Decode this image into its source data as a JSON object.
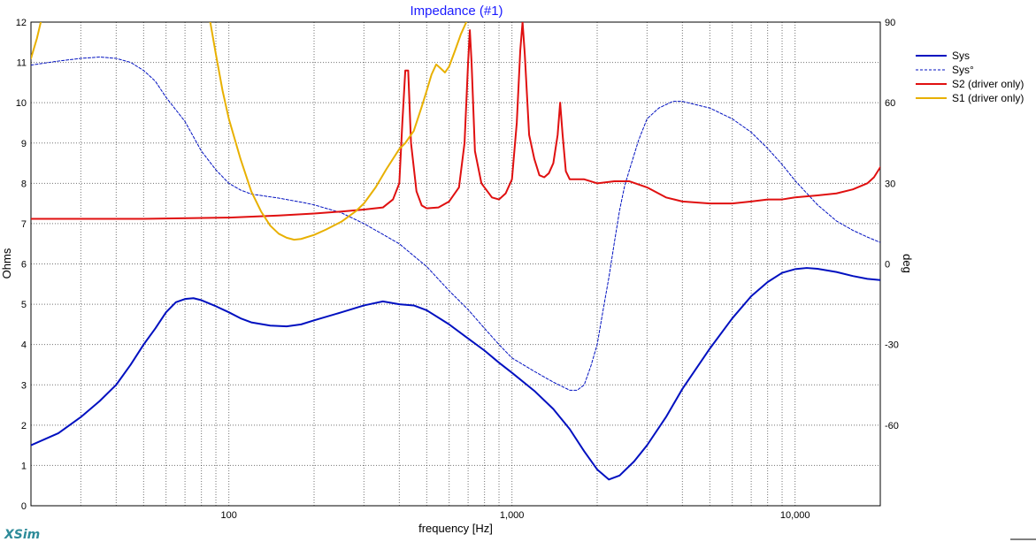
{
  "app": {
    "brand": "XSim",
    "brand_color": "#2e8b99"
  },
  "chart_data": {
    "type": "line",
    "title": "Impedance (#1)",
    "title_color": "#1a1aff",
    "xlabel": "frequency [Hz]",
    "ylabel_left": "Ohms",
    "ylabel_right": "deg",
    "x_scale": "log",
    "xlim": [
      20,
      20000
    ],
    "ylim_left": [
      0,
      12
    ],
    "ylim_right": [
      -90,
      90
    ],
    "grid": true,
    "legend_position": "right",
    "x_tick_labels": [
      {
        "value": 100,
        "label": "100"
      },
      {
        "value": 1000,
        "label": "1,000"
      },
      {
        "value": 10000,
        "label": "10,000"
      }
    ],
    "y_left_ticks": [
      0,
      1,
      2,
      3,
      4,
      5,
      6,
      7,
      8,
      9,
      10,
      11,
      12
    ],
    "y_right_ticks": [
      -60,
      -30,
      0,
      30,
      60,
      90
    ],
    "series": [
      {
        "name": "Sys",
        "axis": "left",
        "color": "#0010c0",
        "style": "solid",
        "width": 2,
        "points": [
          [
            20,
            1.5
          ],
          [
            25,
            1.8
          ],
          [
            30,
            2.2
          ],
          [
            35,
            2.6
          ],
          [
            40,
            3.0
          ],
          [
            45,
            3.5
          ],
          [
            50,
            4.0
          ],
          [
            55,
            4.4
          ],
          [
            60,
            4.8
          ],
          [
            65,
            5.05
          ],
          [
            70,
            5.13
          ],
          [
            75,
            5.15
          ],
          [
            80,
            5.1
          ],
          [
            90,
            4.95
          ],
          [
            100,
            4.8
          ],
          [
            110,
            4.65
          ],
          [
            120,
            4.55
          ],
          [
            140,
            4.47
          ],
          [
            160,
            4.45
          ],
          [
            180,
            4.5
          ],
          [
            200,
            4.6
          ],
          [
            250,
            4.8
          ],
          [
            300,
            4.97
          ],
          [
            350,
            5.07
          ],
          [
            400,
            5.0
          ],
          [
            450,
            4.97
          ],
          [
            500,
            4.85
          ],
          [
            600,
            4.5
          ],
          [
            700,
            4.15
          ],
          [
            800,
            3.85
          ],
          [
            900,
            3.55
          ],
          [
            1000,
            3.3
          ],
          [
            1200,
            2.85
          ],
          [
            1400,
            2.4
          ],
          [
            1600,
            1.9
          ],
          [
            1800,
            1.35
          ],
          [
            2000,
            0.9
          ],
          [
            2200,
            0.65
          ],
          [
            2400,
            0.75
          ],
          [
            2700,
            1.1
          ],
          [
            3000,
            1.5
          ],
          [
            3500,
            2.2
          ],
          [
            4000,
            2.9
          ],
          [
            5000,
            3.9
          ],
          [
            6000,
            4.65
          ],
          [
            7000,
            5.2
          ],
          [
            8000,
            5.55
          ],
          [
            9000,
            5.78
          ],
          [
            10000,
            5.87
          ],
          [
            11000,
            5.9
          ],
          [
            12000,
            5.88
          ],
          [
            14000,
            5.8
          ],
          [
            16000,
            5.7
          ],
          [
            18000,
            5.63
          ],
          [
            20000,
            5.6
          ]
        ]
      },
      {
        "name": "Sys°",
        "axis": "right",
        "color": "#0010c0",
        "style": "dashed",
        "width": 1,
        "points": [
          [
            20,
            74
          ],
          [
            25,
            75.5
          ],
          [
            30,
            76.5
          ],
          [
            35,
            77
          ],
          [
            40,
            76.5
          ],
          [
            45,
            75
          ],
          [
            50,
            72
          ],
          [
            55,
            68
          ],
          [
            60,
            62
          ],
          [
            70,
            53
          ],
          [
            80,
            42
          ],
          [
            90,
            35
          ],
          [
            100,
            30
          ],
          [
            110,
            27.5
          ],
          [
            120,
            26
          ],
          [
            150,
            24.5
          ],
          [
            180,
            23
          ],
          [
            200,
            22
          ],
          [
            250,
            19
          ],
          [
            300,
            15
          ],
          [
            350,
            11
          ],
          [
            400,
            7.5
          ],
          [
            450,
            3
          ],
          [
            500,
            -1
          ],
          [
            600,
            -10
          ],
          [
            700,
            -17
          ],
          [
            800,
            -24
          ],
          [
            900,
            -30
          ],
          [
            1000,
            -35
          ],
          [
            1200,
            -40
          ],
          [
            1400,
            -44
          ],
          [
            1600,
            -47
          ],
          [
            1700,
            -47
          ],
          [
            1800,
            -45
          ],
          [
            1900,
            -38
          ],
          [
            2000,
            -30
          ],
          [
            2100,
            -17
          ],
          [
            2200,
            -5
          ],
          [
            2300,
            8
          ],
          [
            2400,
            20
          ],
          [
            2500,
            29
          ],
          [
            2600,
            35
          ],
          [
            2800,
            46
          ],
          [
            3000,
            54
          ],
          [
            3300,
            58
          ],
          [
            3700,
            60.5
          ],
          [
            4000,
            60.5
          ],
          [
            5000,
            58
          ],
          [
            6000,
            54
          ],
          [
            7000,
            49
          ],
          [
            8000,
            43
          ],
          [
            9000,
            37
          ],
          [
            10000,
            31
          ],
          [
            12000,
            22
          ],
          [
            14000,
            16
          ],
          [
            16000,
            12.5
          ],
          [
            18000,
            10
          ],
          [
            20000,
            8
          ]
        ]
      },
      {
        "name": "S2 (driver only)",
        "axis": "left",
        "color": "#e01010",
        "style": "solid",
        "width": 2,
        "points": [
          [
            20,
            7.12
          ],
          [
            50,
            7.12
          ],
          [
            100,
            7.15
          ],
          [
            150,
            7.2
          ],
          [
            200,
            7.25
          ],
          [
            250,
            7.3
          ],
          [
            300,
            7.35
          ],
          [
            350,
            7.4
          ],
          [
            380,
            7.6
          ],
          [
            400,
            8.0
          ],
          [
            410,
            9.5
          ],
          [
            420,
            10.8
          ],
          [
            430,
            10.8
          ],
          [
            440,
            9.0
          ],
          [
            460,
            7.8
          ],
          [
            480,
            7.45
          ],
          [
            500,
            7.38
          ],
          [
            550,
            7.4
          ],
          [
            600,
            7.55
          ],
          [
            650,
            7.9
          ],
          [
            680,
            9.0
          ],
          [
            700,
            11.0
          ],
          [
            710,
            11.8
          ],
          [
            720,
            11.0
          ],
          [
            740,
            8.8
          ],
          [
            780,
            8.0
          ],
          [
            850,
            7.65
          ],
          [
            900,
            7.6
          ],
          [
            950,
            7.75
          ],
          [
            1000,
            8.1
          ],
          [
            1040,
            9.5
          ],
          [
            1070,
            11.3
          ],
          [
            1090,
            12.0
          ],
          [
            1110,
            11.2
          ],
          [
            1150,
            9.2
          ],
          [
            1200,
            8.6
          ],
          [
            1250,
            8.2
          ],
          [
            1300,
            8.15
          ],
          [
            1350,
            8.25
          ],
          [
            1400,
            8.5
          ],
          [
            1450,
            9.2
          ],
          [
            1480,
            10.0
          ],
          [
            1510,
            9.2
          ],
          [
            1550,
            8.3
          ],
          [
            1600,
            8.1
          ],
          [
            1800,
            8.1
          ],
          [
            2000,
            8.0
          ],
          [
            2300,
            8.05
          ],
          [
            2600,
            8.05
          ],
          [
            3000,
            7.9
          ],
          [
            3500,
            7.65
          ],
          [
            4000,
            7.55
          ],
          [
            5000,
            7.5
          ],
          [
            6000,
            7.5
          ],
          [
            7000,
            7.55
          ],
          [
            8000,
            7.6
          ],
          [
            9000,
            7.6
          ],
          [
            10000,
            7.65
          ],
          [
            12000,
            7.7
          ],
          [
            14000,
            7.75
          ],
          [
            16000,
            7.85
          ],
          [
            18000,
            8.0
          ],
          [
            19000,
            8.15
          ],
          [
            20000,
            8.4
          ]
        ]
      },
      {
        "name": "S1 (driver only)",
        "axis": "left",
        "color": "#e8b000",
        "style": "solid",
        "width": 2,
        "points": [
          [
            20,
            11.1
          ],
          [
            21,
            11.6
          ],
          [
            22,
            12.2
          ],
          [
            85,
            12.2
          ],
          [
            90,
            11.2
          ],
          [
            95,
            10.3
          ],
          [
            100,
            9.6
          ],
          [
            110,
            8.6
          ],
          [
            120,
            7.8
          ],
          [
            130,
            7.3
          ],
          [
            140,
            6.95
          ],
          [
            150,
            6.75
          ],
          [
            160,
            6.65
          ],
          [
            170,
            6.6
          ],
          [
            180,
            6.62
          ],
          [
            200,
            6.72
          ],
          [
            220,
            6.85
          ],
          [
            250,
            7.05
          ],
          [
            280,
            7.3
          ],
          [
            300,
            7.5
          ],
          [
            330,
            7.9
          ],
          [
            360,
            8.35
          ],
          [
            400,
            8.85
          ],
          [
            420,
            9.0
          ],
          [
            450,
            9.3
          ],
          [
            480,
            9.9
          ],
          [
            500,
            10.3
          ],
          [
            520,
            10.7
          ],
          [
            540,
            10.95
          ],
          [
            560,
            10.85
          ],
          [
            580,
            10.75
          ],
          [
            600,
            10.9
          ],
          [
            630,
            11.3
          ],
          [
            660,
            11.7
          ],
          [
            690,
            12.0
          ],
          [
            710,
            12.2
          ]
        ]
      }
    ]
  }
}
